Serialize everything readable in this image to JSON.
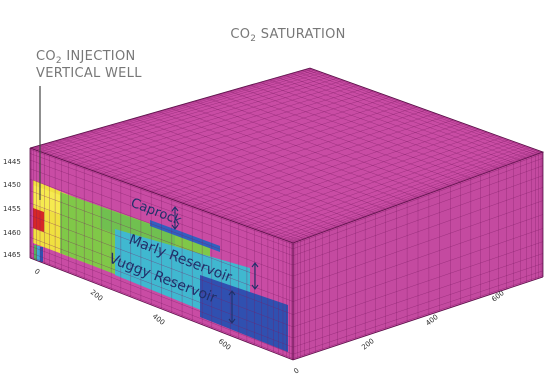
{
  "title": {
    "main_prefix": "CO",
    "main_sub": "2",
    "main_suffix": " SATURATION",
    "well_line1_prefix": "CO",
    "well_line1_sub": "2",
    "well_line1_suffix": " INJECTION",
    "well_line2": "VERTICAL WELL"
  },
  "depth_ticks": [
    "1445",
    "1450",
    "1455",
    "1460",
    "1465"
  ],
  "front_axis_ticks": [
    "0",
    "200",
    "400",
    "600"
  ],
  "right_axis_ticks": [
    "0",
    "200",
    "400",
    "600"
  ],
  "annotations": {
    "caprock": "Caprock",
    "marly": "Marly Reservoir",
    "vuggy": "Vuggy Reservoir"
  },
  "colors": {
    "background_saturation": "#c94ca4",
    "grid_line": "#7a1c63",
    "high": "#d62727",
    "medium_high": "#f0e040",
    "medium": "#80c848",
    "medium_low": "#40b8d0",
    "low": "#3050b0",
    "annotation": "#20306a"
  }
}
